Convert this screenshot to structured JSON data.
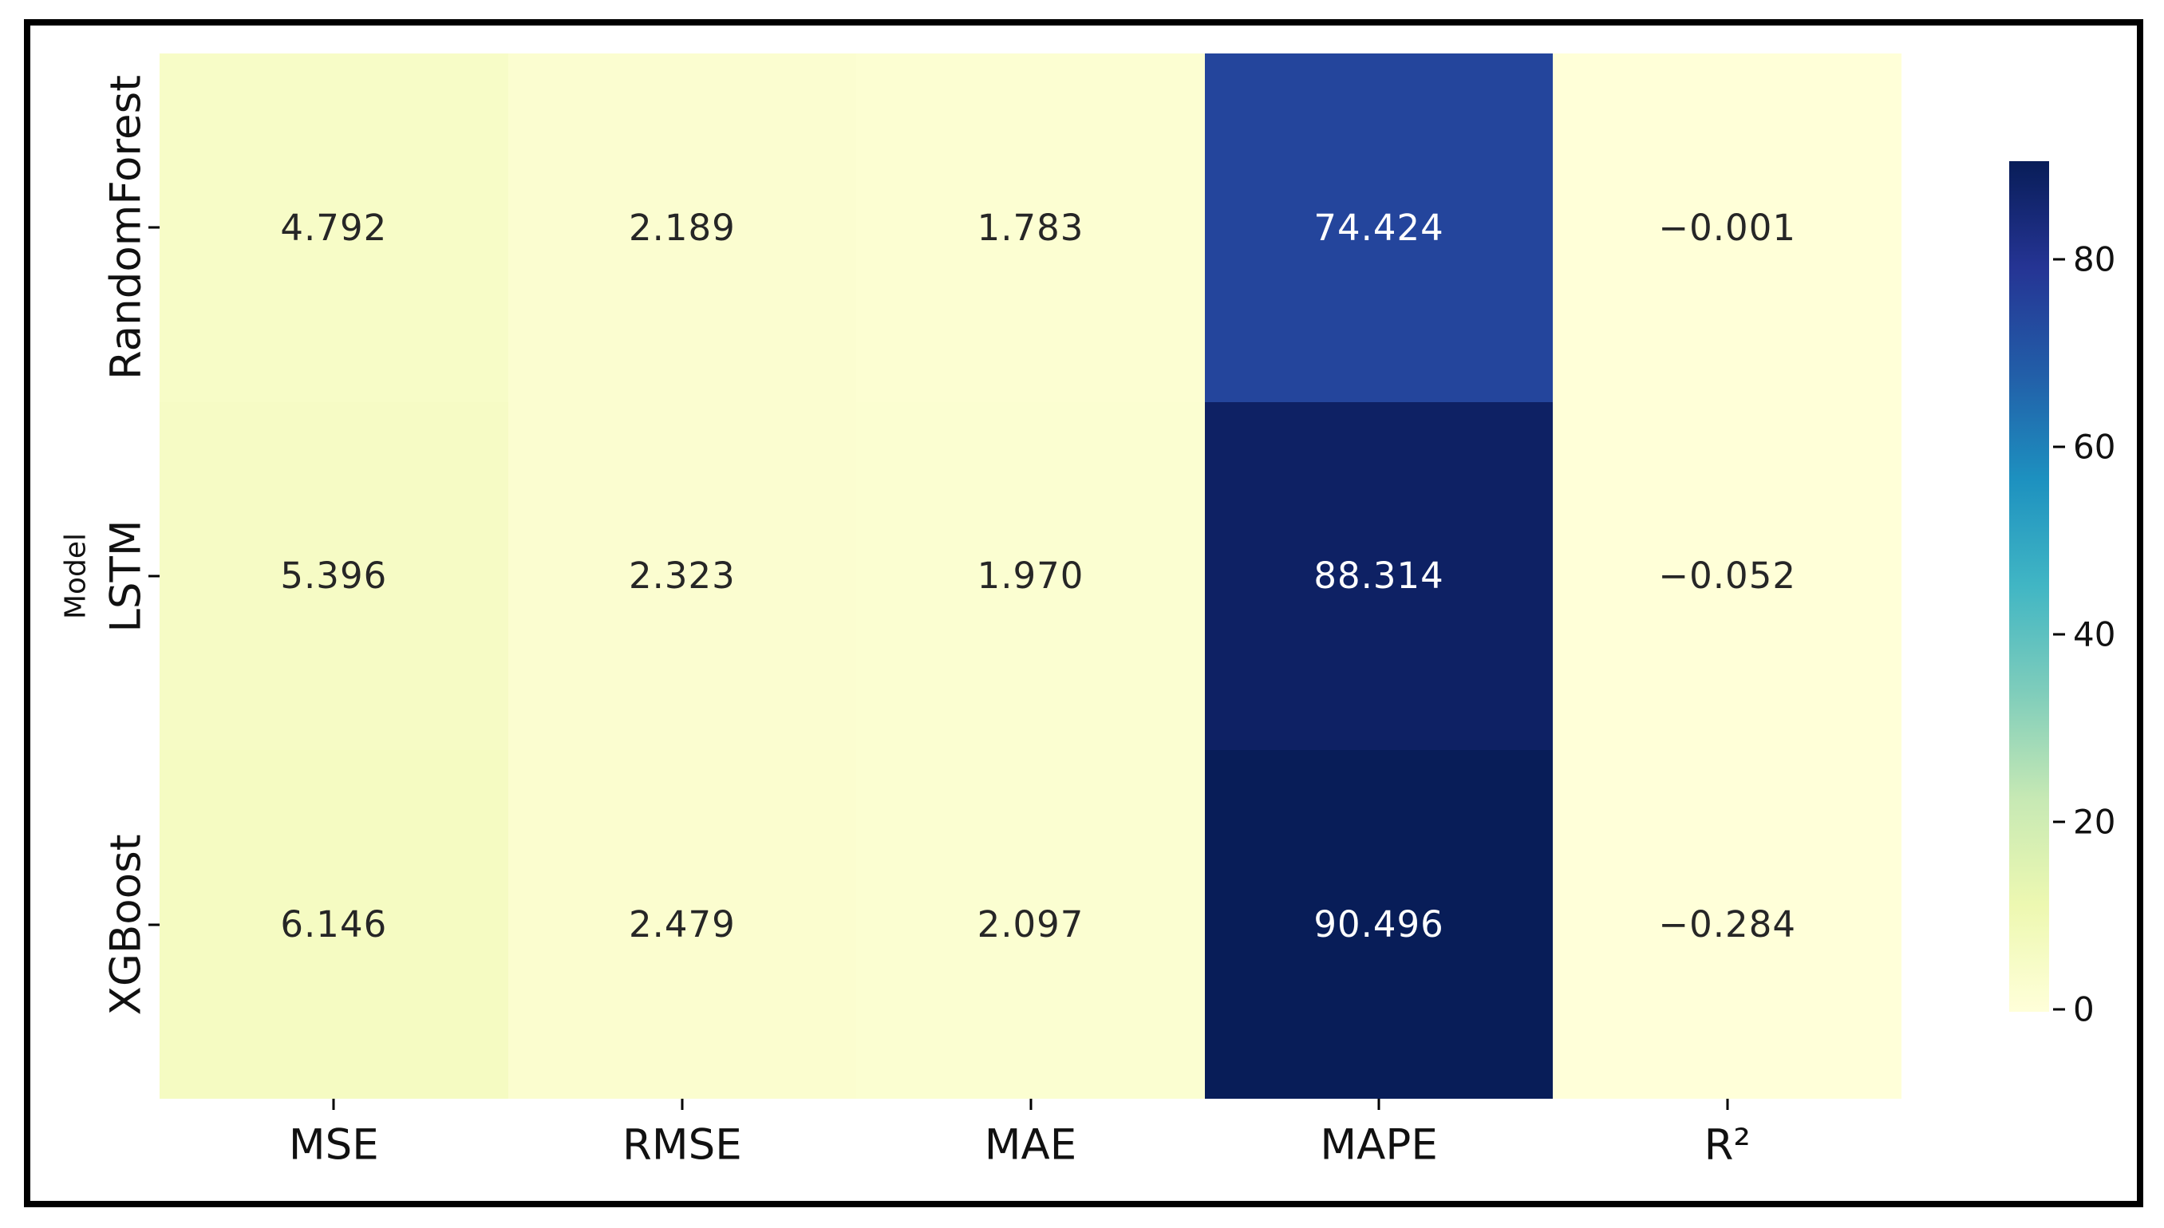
{
  "figure": {
    "background_color": "#ffffff",
    "frame_color": "#000000",
    "axis_text_color": "#111111"
  },
  "chart_data": {
    "type": "heatmap",
    "title": "",
    "xlabel": "",
    "ylabel": "Model",
    "columns": [
      "MSE",
      "RMSE",
      "MAE",
      "MAPE",
      "R²"
    ],
    "rows": [
      "RandomForest",
      "LSTM",
      "XGBoost"
    ],
    "values": [
      [
        4.792,
        2.189,
        1.783,
        74.424,
        -0.001
      ],
      [
        5.396,
        2.323,
        1.97,
        88.314,
        -0.052
      ],
      [
        6.146,
        2.479,
        2.097,
        90.496,
        -0.284
      ]
    ],
    "value_decimals": 3,
    "colormap": "YlGnBu",
    "vmin": -0.284,
    "vmax": 90.496,
    "annotation_color_dark": "#262626",
    "annotation_color_light": "#ffffff",
    "gradient_stops": [
      {
        "t": 0.0,
        "color": "#ffffd9"
      },
      {
        "t": 0.125,
        "color": "#edf8b1"
      },
      {
        "t": 0.25,
        "color": "#c7e9b4"
      },
      {
        "t": 0.375,
        "color": "#7fcdbb"
      },
      {
        "t": 0.5,
        "color": "#41b6c4"
      },
      {
        "t": 0.625,
        "color": "#1d91c0"
      },
      {
        "t": 0.75,
        "color": "#225ea8"
      },
      {
        "t": 0.875,
        "color": "#253494"
      },
      {
        "t": 1.0,
        "color": "#081d58"
      }
    ],
    "colorbar": {
      "ticks": [
        0,
        20,
        40,
        60,
        80
      ],
      "position": "right",
      "grid": false,
      "legend": false
    }
  }
}
